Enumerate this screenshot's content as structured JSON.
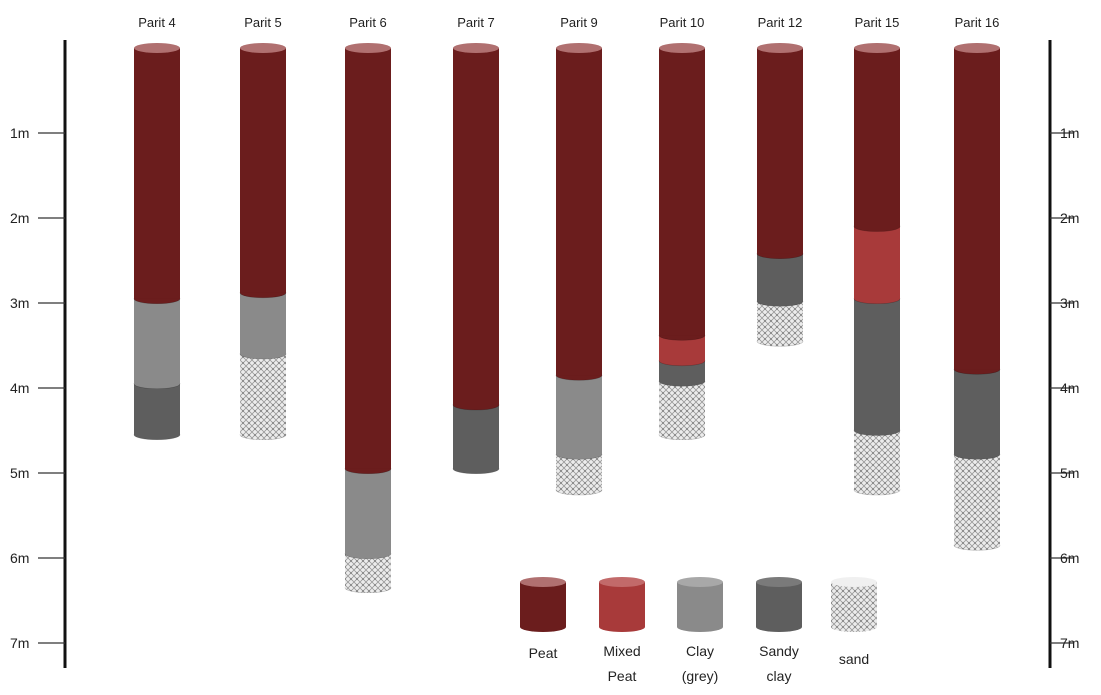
{
  "chart_data": {
    "type": "bar",
    "y_axis": {
      "ticks": [
        "1m",
        "2m",
        "3m",
        "4m",
        "5m",
        "6m",
        "7m"
      ],
      "tick_values": [
        1,
        2,
        3,
        4,
        5,
        6,
        7
      ],
      "range": [
        0,
        7
      ],
      "inverted": true
    },
    "layer_types": [
      {
        "key": "peat",
        "name": "Peat",
        "color": "#6b1d1d",
        "top_color": "#b07070"
      },
      {
        "key": "mixed_peat",
        "name": "Mixed Peat",
        "color": "#a83a3a",
        "top_color": "#c26a6a"
      },
      {
        "key": "clay_grey",
        "name": "Clay (grey)",
        "color": "#8a8a8a",
        "top_color": "#a8a8a8"
      },
      {
        "key": "sandy_clay",
        "name": "Sandy clay",
        "color": "#5e5e5e",
        "top_color": "#7a7a7a"
      },
      {
        "key": "sand",
        "name": "sand",
        "color": "#e6e6e6",
        "top_color": "#f0f0f0",
        "pattern": true
      }
    ],
    "cores": [
      {
        "name": "Parit 4",
        "layers": [
          {
            "type": "peat",
            "from": 0,
            "to": 2.95
          },
          {
            "type": "clay_grey",
            "from": 2.95,
            "to": 3.95
          },
          {
            "type": "sandy_clay",
            "from": 3.95,
            "to": 4.55
          }
        ]
      },
      {
        "name": "Parit 5",
        "layers": [
          {
            "type": "peat",
            "from": 0,
            "to": 2.88
          },
          {
            "type": "clay_grey",
            "from": 2.88,
            "to": 3.6
          },
          {
            "type": "sand",
            "from": 3.6,
            "to": 4.55
          }
        ]
      },
      {
        "name": "Parit 6",
        "layers": [
          {
            "type": "peat",
            "from": 0,
            "to": 4.95
          },
          {
            "type": "clay_grey",
            "from": 4.95,
            "to": 5.95
          },
          {
            "type": "sand",
            "from": 5.95,
            "to": 6.35
          }
        ]
      },
      {
        "name": "Parit 7",
        "layers": [
          {
            "type": "peat",
            "from": 0,
            "to": 4.2
          },
          {
            "type": "sandy_clay",
            "from": 4.2,
            "to": 4.95
          }
        ]
      },
      {
        "name": "Parit 9",
        "layers": [
          {
            "type": "peat",
            "from": 0,
            "to": 3.85
          },
          {
            "type": "clay_grey",
            "from": 3.85,
            "to": 4.78
          },
          {
            "type": "sand",
            "from": 4.78,
            "to": 5.2
          }
        ]
      },
      {
        "name": "Parit 10",
        "layers": [
          {
            "type": "peat",
            "from": 0,
            "to": 3.38
          },
          {
            "type": "mixed_peat",
            "from": 3.38,
            "to": 3.68
          },
          {
            "type": "sandy_clay",
            "from": 3.68,
            "to": 3.92
          },
          {
            "type": "sand",
            "from": 3.92,
            "to": 4.55
          }
        ]
      },
      {
        "name": "Parit 12",
        "layers": [
          {
            "type": "peat",
            "from": 0,
            "to": 2.42
          },
          {
            "type": "sandy_clay",
            "from": 2.42,
            "to": 2.98
          },
          {
            "type": "sand",
            "from": 2.98,
            "to": 3.45
          }
        ]
      },
      {
        "name": "Parit 15",
        "layers": [
          {
            "type": "peat",
            "from": 0,
            "to": 2.1
          },
          {
            "type": "mixed_peat",
            "from": 2.1,
            "to": 2.95
          },
          {
            "type": "sandy_clay",
            "from": 2.95,
            "to": 4.5
          },
          {
            "type": "sand",
            "from": 4.5,
            "to": 5.2
          }
        ]
      },
      {
        "name": "Parit 16",
        "layers": [
          {
            "type": "peat",
            "from": 0,
            "to": 3.78
          },
          {
            "type": "sandy_clay",
            "from": 3.78,
            "to": 4.78
          },
          {
            "type": "sand",
            "from": 4.78,
            "to": 5.85
          }
        ]
      }
    ],
    "legend": {
      "placement": "bottom-center",
      "items": [
        {
          "type": "peat",
          "lines": [
            "Peat"
          ]
        },
        {
          "type": "mixed_peat",
          "lines": [
            "Mixed",
            "Peat"
          ]
        },
        {
          "type": "clay_grey",
          "lines": [
            "Clay",
            "(grey)"
          ]
        },
        {
          "type": "sandy_clay",
          "lines": [
            "Sandy",
            "clay"
          ]
        },
        {
          "type": "sand",
          "lines": [
            "sand"
          ]
        }
      ]
    }
  }
}
